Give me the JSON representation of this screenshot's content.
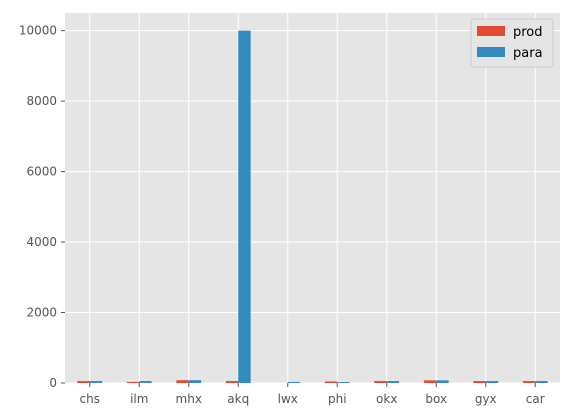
{
  "chart_data": {
    "type": "bar",
    "title": "",
    "xlabel": "",
    "ylabel": "",
    "categories": [
      "chs",
      "ilm",
      "mhx",
      "akq",
      "lwx",
      "phi",
      "okx",
      "box",
      "gyx",
      "car"
    ],
    "series": [
      {
        "name": "prod",
        "color": "#E24A33",
        "values": [
          55,
          30,
          80,
          55,
          0,
          45,
          55,
          75,
          55,
          55
        ]
      },
      {
        "name": "para",
        "color": "#348ABD",
        "values": [
          55,
          55,
          80,
          10000,
          30,
          25,
          55,
          75,
          55,
          55
        ]
      }
    ],
    "ylim": [
      0,
      10500
    ],
    "yticks": [
      0,
      2000,
      4000,
      6000,
      8000,
      10000
    ],
    "grid": true,
    "legend_position": "top-right",
    "style": {
      "plot_background": "#E5E5E5",
      "grid_color": "#FFFFFF",
      "tick_label_color": "#555555"
    }
  }
}
